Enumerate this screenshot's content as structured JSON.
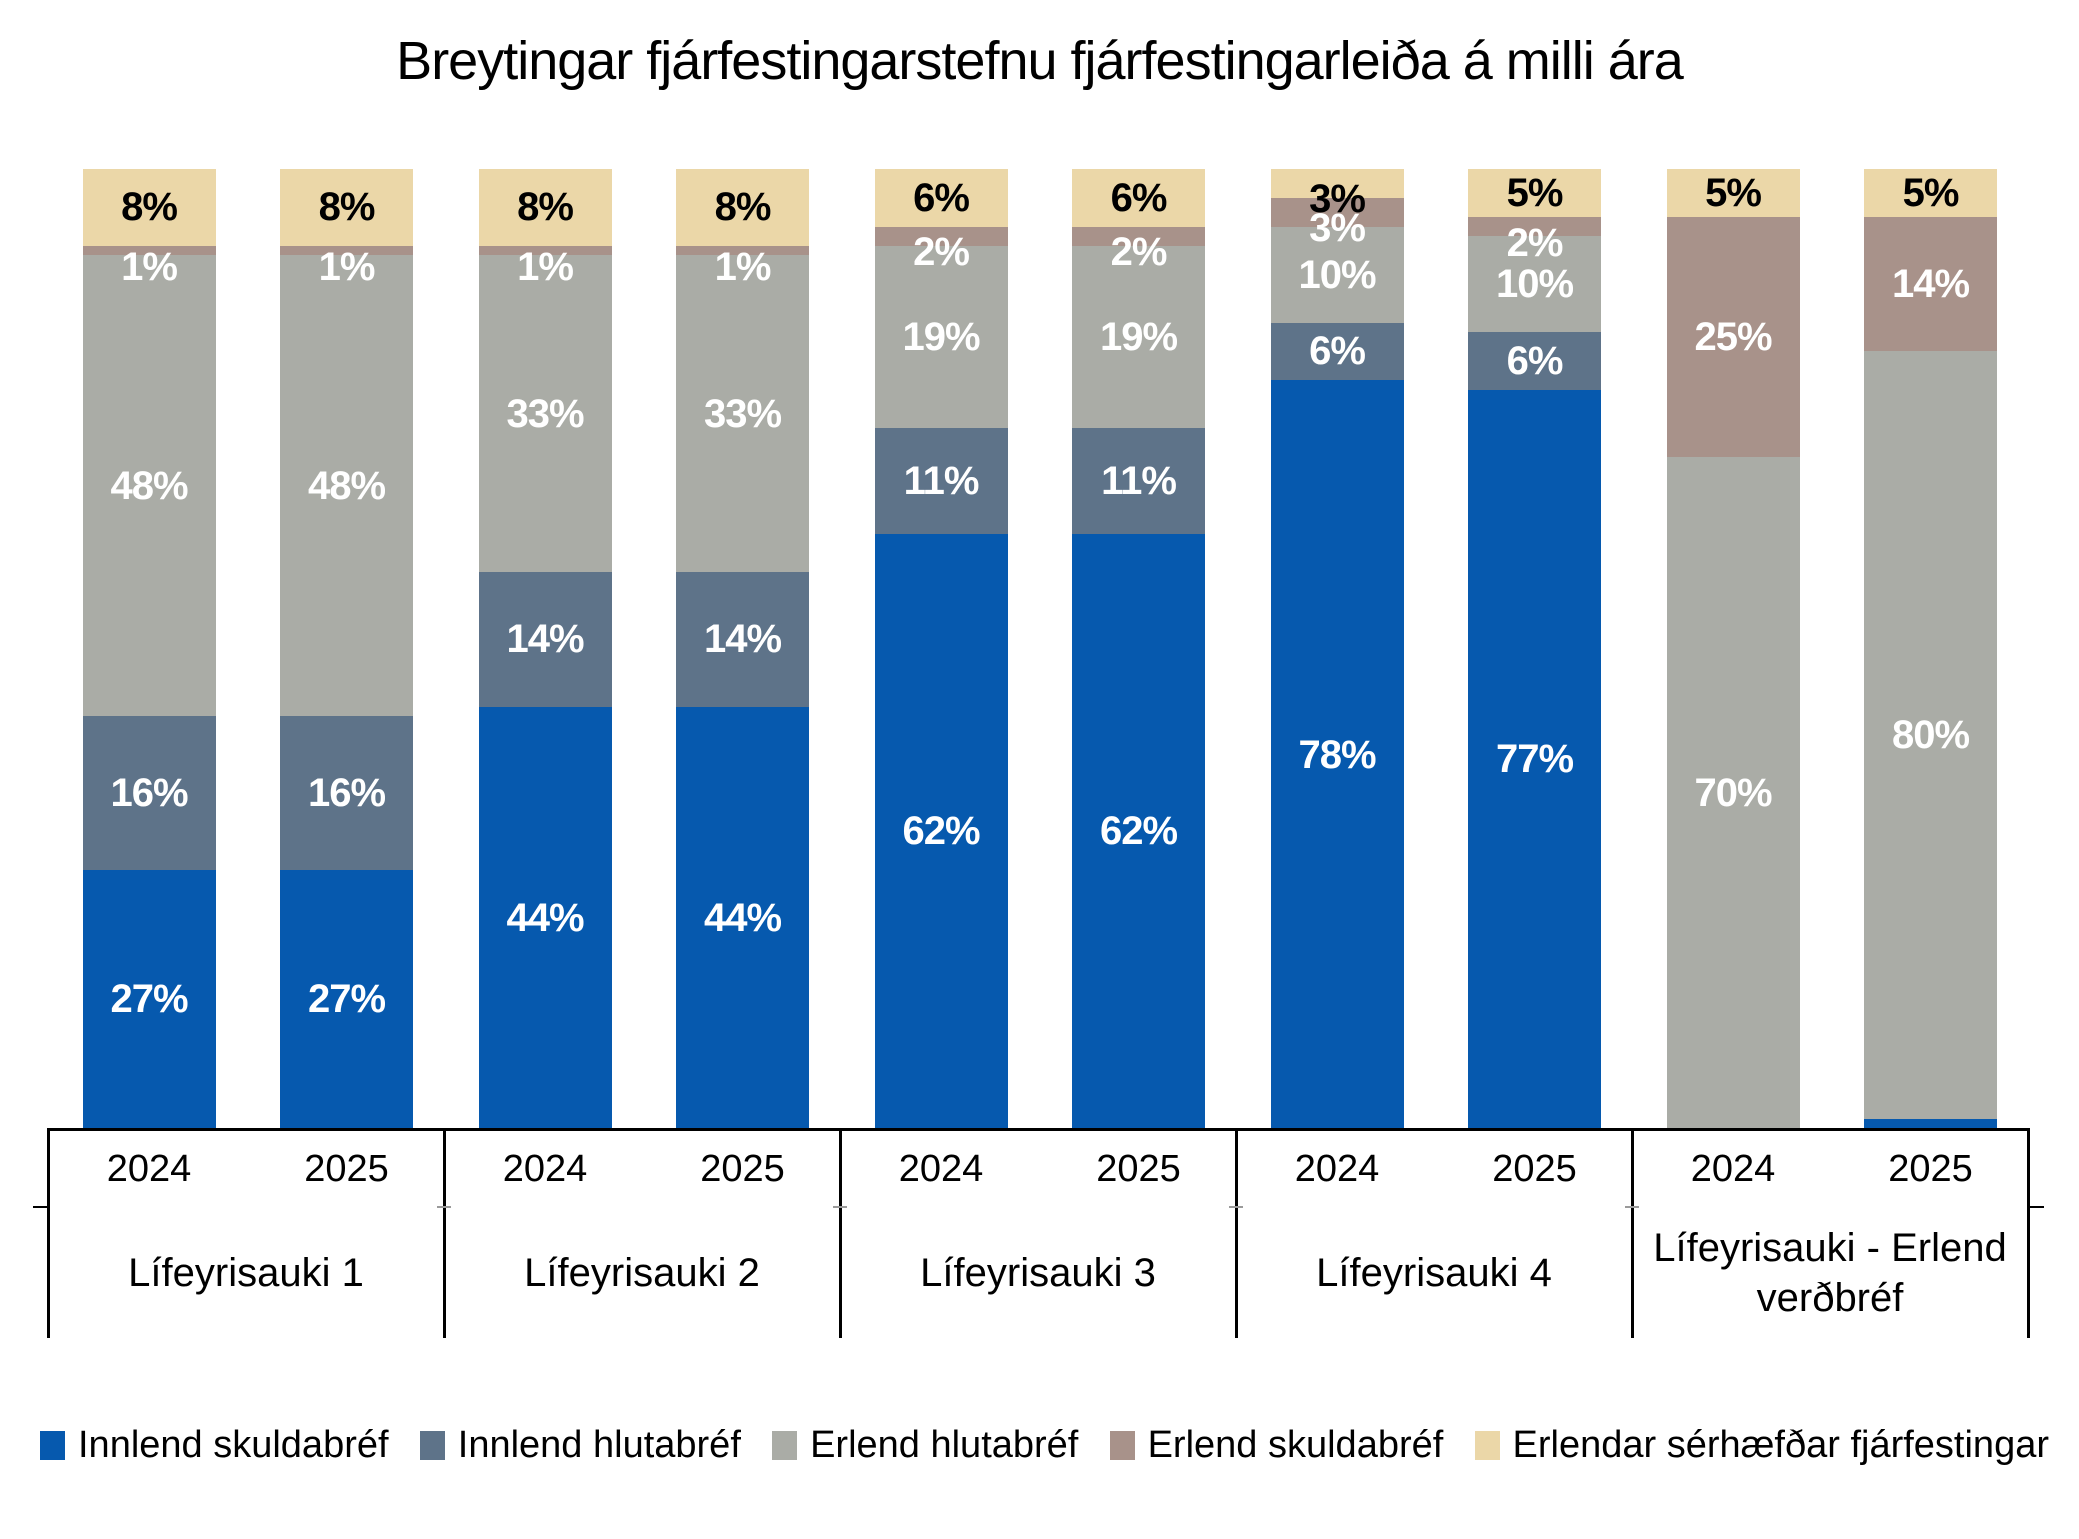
{
  "title": "Breytingar fjárfestingarstefnu fjárfestingarleiða á milli ára",
  "colors": {
    "innlend_skuldabref": "#0659AE",
    "innlend_hlutabref": "#5E7389",
    "erlend_hlutabref": "#AAACA6",
    "erlend_skuldabref": "#A8928A",
    "erlendar_serhaefdar": "#EBD7A8",
    "label_light": "#FFFFFF",
    "label_dark": "#000000",
    "axis_line": "#000000"
  },
  "chart_data": {
    "type": "bar",
    "stacking": "percent",
    "ylim": [
      0,
      100
    ],
    "grid": false,
    "legend_position": "bottom",
    "groups": [
      {
        "label": "Lífeyrisauki 1",
        "years": [
          "2024",
          "2025"
        ]
      },
      {
        "label": "Lífeyrisauki 2",
        "years": [
          "2024",
          "2025"
        ]
      },
      {
        "label": "Lífeyrisauki 3",
        "years": [
          "2024",
          "2025"
        ]
      },
      {
        "label": "Lífeyrisauki 4",
        "years": [
          "2024",
          "2025"
        ]
      },
      {
        "label": "Lífeyrisauki - Erlend verðbréf",
        "years": [
          "2024",
          "2025"
        ]
      }
    ],
    "series": [
      {
        "name": "Innlend skuldabréf",
        "color_key": "innlend_skuldabref",
        "label_color": "#FFFFFF",
        "values": [
          27,
          27,
          44,
          44,
          62,
          62,
          78,
          77,
          0,
          1
        ]
      },
      {
        "name": "Innlend hlutabréf",
        "color_key": "innlend_hlutabref",
        "label_color": "#FFFFFF",
        "values": [
          16,
          16,
          14,
          14,
          11,
          11,
          6,
          6,
          0,
          0
        ]
      },
      {
        "name": "Erlend hlutabréf",
        "color_key": "erlend_hlutabref",
        "label_color": "#FFFFFF",
        "values": [
          48,
          48,
          33,
          33,
          19,
          19,
          10,
          10,
          70,
          80
        ]
      },
      {
        "name": "Erlend skuldabréf",
        "color_key": "erlend_skuldabref",
        "label_color": "#FFFFFF",
        "values": [
          1,
          1,
          1,
          1,
          2,
          2,
          3,
          2,
          25,
          14
        ]
      },
      {
        "name": "Erlendar sérhæfðar fjárfestingar",
        "color_key": "erlendar_serhaefdar",
        "label_color": "#000000",
        "values": [
          8,
          8,
          8,
          8,
          6,
          6,
          3,
          5,
          5,
          5
        ]
      }
    ],
    "value_suffix": "%"
  },
  "legend": [
    {
      "label": "Innlend skuldabréf",
      "color_key": "innlend_skuldabref"
    },
    {
      "label": "Innlend hlutabréf",
      "color_key": "innlend_hlutabref"
    },
    {
      "label": "Erlend hlutabréf",
      "color_key": "erlend_hlutabref"
    },
    {
      "label": "Erlend skuldabréf",
      "color_key": "erlend_skuldabref"
    },
    {
      "label": "Erlendar sérhæfðar fjárfestingar",
      "color_key": "erlendar_serhaefdar"
    }
  ]
}
